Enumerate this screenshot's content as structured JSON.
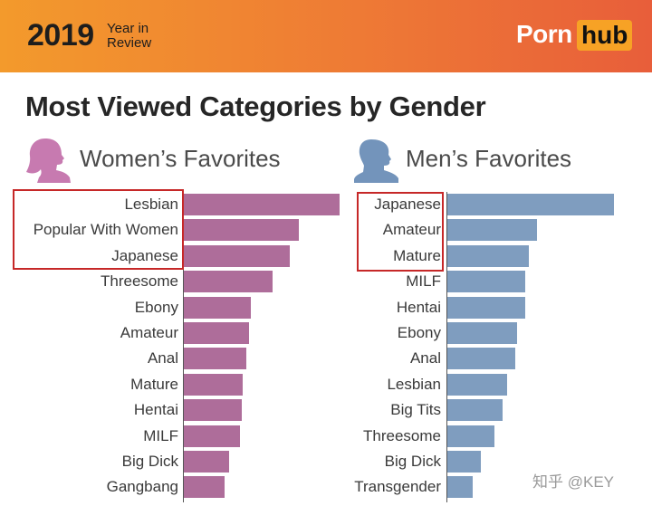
{
  "header": {
    "year": "2019",
    "year_in_review_line1": "Year in",
    "year_in_review_line2": "Review",
    "logo_part1": "Porn",
    "logo_part2": "hub"
  },
  "title": "Most Viewed Categories by Gender",
  "watermark": "知乎 @KEY",
  "colors": {
    "women_bar": "#ae6d9a",
    "men_bar": "#7f9dbf",
    "women_icon": "#c77ab0",
    "men_icon": "#7394bb",
    "highlight_box": "#c62828"
  },
  "chart_data": [
    {
      "type": "bar",
      "orientation": "horizontal",
      "title": "Women’s Favorites",
      "icon": "woman-silhouette-icon",
      "color": "#ae6d9a",
      "categories": [
        "Lesbian",
        "Popular With Women",
        "Japanese",
        "Threesome",
        "Ebony",
        "Amateur",
        "Anal",
        "Mature",
        "Hentai",
        "MILF",
        "Big Dick",
        "Gangbang"
      ],
      "values": [
        100,
        74,
        68,
        57,
        43,
        42,
        40,
        38,
        37,
        36,
        29,
        26
      ],
      "highlighted_categories": [
        "Lesbian",
        "Popular With Women",
        "Japanese"
      ],
      "grid": false,
      "xlim": [
        0,
        100
      ]
    },
    {
      "type": "bar",
      "orientation": "horizontal",
      "title": "Men’s Favorites",
      "icon": "man-silhouette-icon",
      "color": "#7f9dbf",
      "categories": [
        "Japanese",
        "Amateur",
        "Mature",
        "MILF",
        "Hentai",
        "Ebony",
        "Anal",
        "Lesbian",
        "Big Tits",
        "Threesome",
        "Big Dick",
        "Transgender"
      ],
      "values": [
        100,
        54,
        49,
        47,
        47,
        42,
        41,
        36,
        33,
        28,
        20,
        15
      ],
      "highlighted_categories": [
        "Japanese",
        "Amateur",
        "Mature"
      ],
      "grid": false,
      "xlim": [
        0,
        100
      ]
    }
  ]
}
